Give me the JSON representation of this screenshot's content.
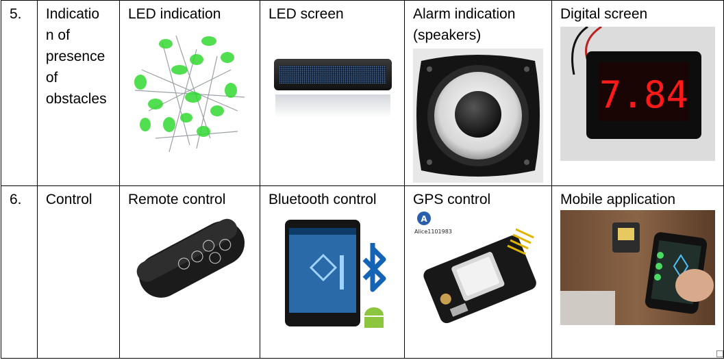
{
  "rows": [
    {
      "num": "5.",
      "category": "Indicatio n of presence of obstacles",
      "cells": [
        {
          "label": "LED indication",
          "icon": "green-leds-icon"
        },
        {
          "label": "LED screen",
          "icon": "led-name-badge-icon"
        },
        {
          "label": "Alarm indication (speakers)",
          "icon": "speaker-icon"
        },
        {
          "label": "Digital screen",
          "icon": "digital-voltmeter-icon",
          "display_value": "7.84"
        }
      ]
    },
    {
      "num": "6.",
      "category": "Control",
      "cells": [
        {
          "label": "Remote control",
          "icon": "remote-control-icon"
        },
        {
          "label": "Bluetooth control",
          "icon": "phone-bluetooth-icon"
        },
        {
          "label": "GPS control",
          "icon": "gps-module-icon",
          "watermark": "Alice1101983"
        },
        {
          "label": "Mobile application",
          "icon": "mobile-app-robot-icon"
        }
      ]
    }
  ],
  "colors": {
    "led_green": "#33d933",
    "display_red": "#ff1a1a",
    "bluetooth_blue": "#1463b4",
    "android_green": "#8cc63f"
  }
}
